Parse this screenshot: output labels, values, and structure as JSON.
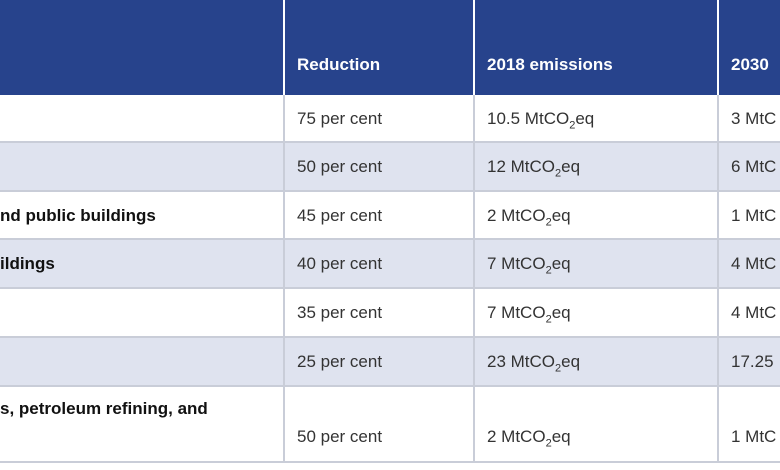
{
  "table": {
    "header": [
      "",
      "Reduction",
      "2018 emissions",
      "2030"
    ],
    "rows": [
      [
        "",
        "75 per cent",
        [
          "10.5 MtCO",
          "2",
          "eq"
        ],
        "3 MtC"
      ],
      [
        "",
        "50 per cent",
        [
          "12 MtCO",
          "2",
          "eq"
        ],
        "6 MtC"
      ],
      [
        "nd public buildings",
        "45 per cent",
        [
          "2 MtCO",
          "2",
          "eq"
        ],
        "1 MtC"
      ],
      [
        "ildings",
        "40 per cent",
        [
          "7 MtCO",
          "2",
          "eq"
        ],
        "4 MtC"
      ],
      [
        "",
        "35 per cent",
        [
          "7 MtCO",
          "2",
          "eq"
        ],
        "4 MtC"
      ],
      [
        "",
        "25 per cent",
        [
          "23 MtCO",
          "2",
          "eq"
        ],
        "17.25"
      ],
      [
        "s, petroleum refining, and",
        "50 per cent",
        [
          "2 MtCO",
          "2",
          "eq"
        ],
        "1 MtC"
      ]
    ]
  }
}
